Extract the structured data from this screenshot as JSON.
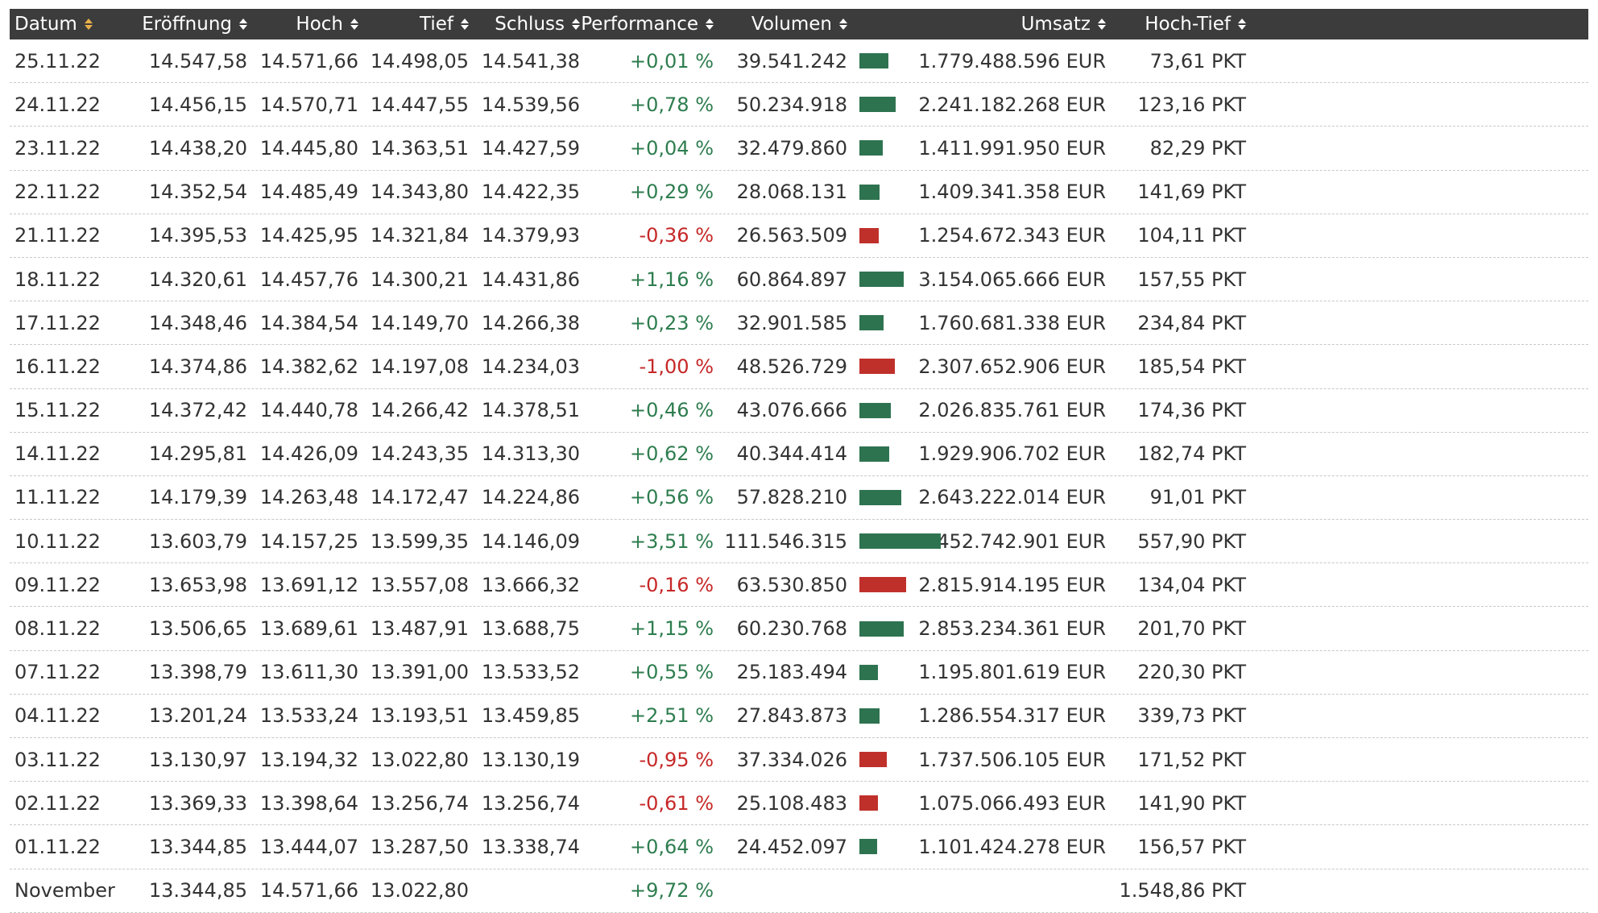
{
  "colors": {
    "header_bg": "#3c3c3c",
    "positive": "#2e7d4f",
    "negative": "#c62828",
    "bar_positive": "#2e7350",
    "bar_negative": "#c0302b",
    "sort_active": "#e8b04a"
  },
  "table": {
    "columns": [
      "Datum",
      "Eröffnung",
      "Hoch",
      "Tief",
      "Schluss",
      "Performance",
      "Volumen",
      "Umsatz",
      "Hoch-Tief"
    ],
    "sorted_column": "Datum",
    "max_volume": 111546315,
    "rows": [
      {
        "datum": "25.11.22",
        "eroeffnung": "14.547,58",
        "hoch": "14.571,66",
        "tief": "14.498,05",
        "schluss": "14.541,38",
        "performance": "+0,01 %",
        "volumen": "39.541.242",
        "volumen_value": 39541242,
        "umsatz": "1.779.488.596 EUR",
        "hochtief": "73,61 PKT",
        "trend": "pos"
      },
      {
        "datum": "24.11.22",
        "eroeffnung": "14.456,15",
        "hoch": "14.570,71",
        "tief": "14.447,55",
        "schluss": "14.539,56",
        "performance": "+0,78 %",
        "volumen": "50.234.918",
        "volumen_value": 50234918,
        "umsatz": "2.241.182.268 EUR",
        "hochtief": "123,16 PKT",
        "trend": "pos"
      },
      {
        "datum": "23.11.22",
        "eroeffnung": "14.438,20",
        "hoch": "14.445,80",
        "tief": "14.363,51",
        "schluss": "14.427,59",
        "performance": "+0,04 %",
        "volumen": "32.479.860",
        "volumen_value": 32479860,
        "umsatz": "1.411.991.950 EUR",
        "hochtief": "82,29 PKT",
        "trend": "pos"
      },
      {
        "datum": "22.11.22",
        "eroeffnung": "14.352,54",
        "hoch": "14.485,49",
        "tief": "14.343,80",
        "schluss": "14.422,35",
        "performance": "+0,29 %",
        "volumen": "28.068.131",
        "volumen_value": 28068131,
        "umsatz": "1.409.341.358 EUR",
        "hochtief": "141,69 PKT",
        "trend": "pos"
      },
      {
        "datum": "21.11.22",
        "eroeffnung": "14.395,53",
        "hoch": "14.425,95",
        "tief": "14.321,84",
        "schluss": "14.379,93",
        "performance": "-0,36 %",
        "volumen": "26.563.509",
        "volumen_value": 26563509,
        "umsatz": "1.254.672.343 EUR",
        "hochtief": "104,11 PKT",
        "trend": "neg"
      },
      {
        "datum": "18.11.22",
        "eroeffnung": "14.320,61",
        "hoch": "14.457,76",
        "tief": "14.300,21",
        "schluss": "14.431,86",
        "performance": "+1,16 %",
        "volumen": "60.864.897",
        "volumen_value": 60864897,
        "umsatz": "3.154.065.666 EUR",
        "hochtief": "157,55 PKT",
        "trend": "pos"
      },
      {
        "datum": "17.11.22",
        "eroeffnung": "14.348,46",
        "hoch": "14.384,54",
        "tief": "14.149,70",
        "schluss": "14.266,38",
        "performance": "+0,23 %",
        "volumen": "32.901.585",
        "volumen_value": 32901585,
        "umsatz": "1.760.681.338 EUR",
        "hochtief": "234,84 PKT",
        "trend": "pos"
      },
      {
        "datum": "16.11.22",
        "eroeffnung": "14.374,86",
        "hoch": "14.382,62",
        "tief": "14.197,08",
        "schluss": "14.234,03",
        "performance": "-1,00 %",
        "volumen": "48.526.729",
        "volumen_value": 48526729,
        "umsatz": "2.307.652.906 EUR",
        "hochtief": "185,54 PKT",
        "trend": "neg"
      },
      {
        "datum": "15.11.22",
        "eroeffnung": "14.372,42",
        "hoch": "14.440,78",
        "tief": "14.266,42",
        "schluss": "14.378,51",
        "performance": "+0,46 %",
        "volumen": "43.076.666",
        "volumen_value": 43076666,
        "umsatz": "2.026.835.761 EUR",
        "hochtief": "174,36 PKT",
        "trend": "pos"
      },
      {
        "datum": "14.11.22",
        "eroeffnung": "14.295,81",
        "hoch": "14.426,09",
        "tief": "14.243,35",
        "schluss": "14.313,30",
        "performance": "+0,62 %",
        "volumen": "40.344.414",
        "volumen_value": 40344414,
        "umsatz": "1.929.906.702 EUR",
        "hochtief": "182,74 PKT",
        "trend": "pos"
      },
      {
        "datum": "11.11.22",
        "eroeffnung": "14.179,39",
        "hoch": "14.263,48",
        "tief": "14.172,47",
        "schluss": "14.224,86",
        "performance": "+0,56 %",
        "volumen": "57.828.210",
        "volumen_value": 57828210,
        "umsatz": "2.643.222.014 EUR",
        "hochtief": "91,01 PKT",
        "trend": "pos"
      },
      {
        "datum": "10.11.22",
        "eroeffnung": "13.603,79",
        "hoch": "14.157,25",
        "tief": "13.599,35",
        "schluss": "14.146,09",
        "performance": "+3,51 %",
        "volumen": "111.546.315",
        "volumen_value": 111546315,
        "umsatz": "5.452.742.901 EUR",
        "hochtief": "557,90 PKT",
        "trend": "pos"
      },
      {
        "datum": "09.11.22",
        "eroeffnung": "13.653,98",
        "hoch": "13.691,12",
        "tief": "13.557,08",
        "schluss": "13.666,32",
        "performance": "-0,16 %",
        "volumen": "63.530.850",
        "volumen_value": 63530850,
        "umsatz": "2.815.914.195 EUR",
        "hochtief": "134,04 PKT",
        "trend": "neg"
      },
      {
        "datum": "08.11.22",
        "eroeffnung": "13.506,65",
        "hoch": "13.689,61",
        "tief": "13.487,91",
        "schluss": "13.688,75",
        "performance": "+1,15 %",
        "volumen": "60.230.768",
        "volumen_value": 60230768,
        "umsatz": "2.853.234.361 EUR",
        "hochtief": "201,70 PKT",
        "trend": "pos"
      },
      {
        "datum": "07.11.22",
        "eroeffnung": "13.398,79",
        "hoch": "13.611,30",
        "tief": "13.391,00",
        "schluss": "13.533,52",
        "performance": "+0,55 %",
        "volumen": "25.183.494",
        "volumen_value": 25183494,
        "umsatz": "1.195.801.619 EUR",
        "hochtief": "220,30 PKT",
        "trend": "pos"
      },
      {
        "datum": "04.11.22",
        "eroeffnung": "13.201,24",
        "hoch": "13.533,24",
        "tief": "13.193,51",
        "schluss": "13.459,85",
        "performance": "+2,51 %",
        "volumen": "27.843.873",
        "volumen_value": 27843873,
        "umsatz": "1.286.554.317 EUR",
        "hochtief": "339,73 PKT",
        "trend": "pos"
      },
      {
        "datum": "03.11.22",
        "eroeffnung": "13.130,97",
        "hoch": "13.194,32",
        "tief": "13.022,80",
        "schluss": "13.130,19",
        "performance": "-0,95 %",
        "volumen": "37.334.026",
        "volumen_value": 37334026,
        "umsatz": "1.737.506.105 EUR",
        "hochtief": "171,52 PKT",
        "trend": "neg"
      },
      {
        "datum": "02.11.22",
        "eroeffnung": "13.369,33",
        "hoch": "13.398,64",
        "tief": "13.256,74",
        "schluss": "13.256,74",
        "performance": "-0,61 %",
        "volumen": "25.108.483",
        "volumen_value": 25108483,
        "umsatz": "1.075.066.493 EUR",
        "hochtief": "141,90 PKT",
        "trend": "neg"
      },
      {
        "datum": "01.11.22",
        "eroeffnung": "13.344,85",
        "hoch": "13.444,07",
        "tief": "13.287,50",
        "schluss": "13.338,74",
        "performance": "+0,64 %",
        "volumen": "24.452.097",
        "volumen_value": 24452097,
        "umsatz": "1.101.424.278 EUR",
        "hochtief": "156,57 PKT",
        "trend": "pos"
      }
    ],
    "summary": {
      "datum": "November",
      "eroeffnung": "13.344,85",
      "hoch": "14.571,66",
      "tief": "13.022,80",
      "schluss": "",
      "performance": "+9,72 %",
      "volumen": "",
      "umsatz": "",
      "hochtief": "1.548,86 PKT",
      "trend": "pos"
    }
  }
}
